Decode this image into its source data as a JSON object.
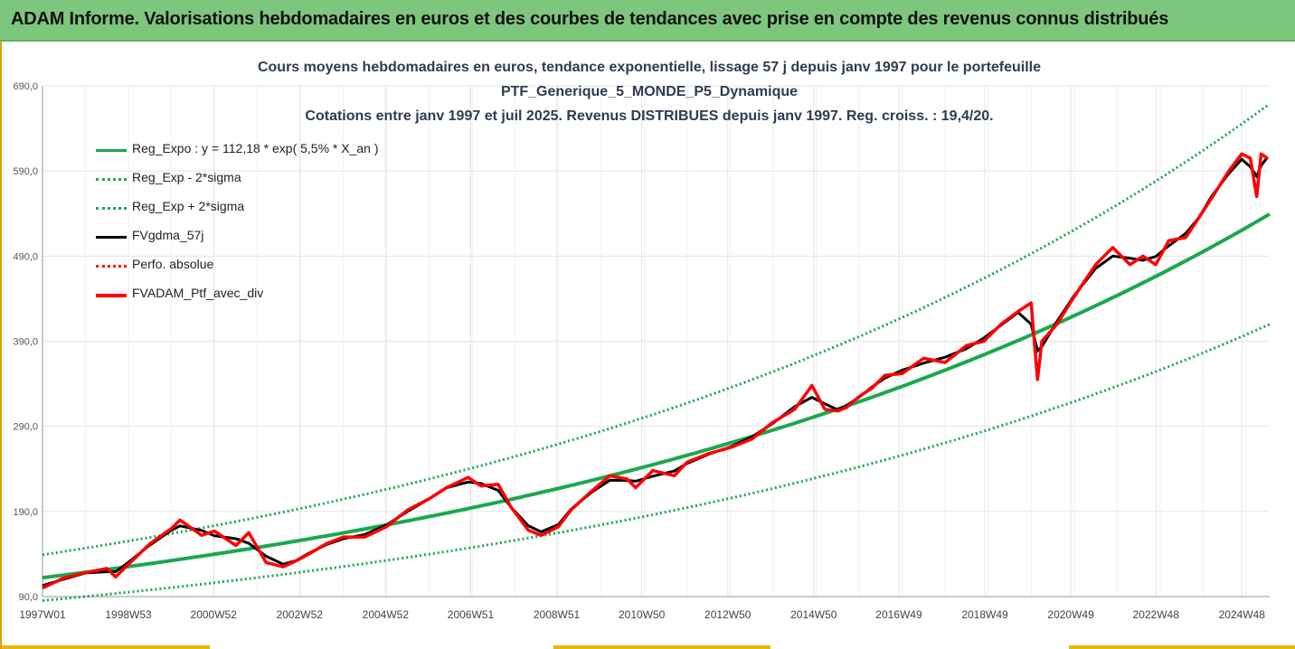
{
  "banner": {
    "title": "ADAM Informe. Valorisations hebdomadaires en euros et des courbes de tendances avec prise en compte des revenus connus distribués"
  },
  "chart_data": {
    "type": "line",
    "title_lines": [
      "Cours moyens hebdomadaires  en euros, tendance exponentielle, lissage 57 j depuis janv 1997 pour le portefeuille",
      "PTF_Generique_5_MONDE_P5_Dynamique",
      "Cotations  entre janv 1997 et juil 2025. Revenus DISTRIBUES depuis janv 1997. Reg. croiss. : 19,4/20."
    ],
    "xlabel": "",
    "ylabel": "",
    "ylim": [
      90,
      690
    ],
    "xlim": [
      1997.0,
      2025.55
    ],
    "y_ticks": [
      "90,0",
      "190,0",
      "290,0",
      "390,0",
      "490,0",
      "590,0",
      "690,0"
    ],
    "y_tick_values": [
      90,
      190,
      290,
      390,
      490,
      590,
      690
    ],
    "x_ticks": [
      "1997W01",
      "1998W53",
      "2000W52",
      "2002W52",
      "2004W52",
      "2006W51",
      "2008W51",
      "2010W50",
      "2012W50",
      "2014W50",
      "2016W49",
      "2018W49",
      "2020W49",
      "2022W48",
      "2024W48"
    ],
    "grid": true,
    "legend_position": "top-left",
    "regression": {
      "a": 112.18,
      "rate": 0.055,
      "sigma_band": 0.24
    },
    "series": [
      {
        "name": "Reg_Expo : y = 112,18 * exp( 5,5% *  X_an )",
        "color": "#1aa84f",
        "style": "solid"
      },
      {
        "name": "Reg_Exp - 2*sigma",
        "color": "#1aa84f",
        "style": "dotted"
      },
      {
        "name": "Reg_Exp + 2*sigma",
        "color": "#1aa84f",
        "style": "dotted"
      },
      {
        "name": "FVgdma_57j",
        "color": "#000000",
        "style": "solid"
      },
      {
        "name": "Perfo. absolue",
        "color": "#ff0000",
        "style": "dotted"
      },
      {
        "name": "FVADAM_Ptf_avec_div",
        "color": "#ff0000",
        "style": "solid",
        "x": [
          1997.0,
          1997.5,
          1998.0,
          1998.5,
          1998.7,
          1999.0,
          1999.5,
          2000.0,
          2000.2,
          2000.7,
          2001.0,
          2001.5,
          2001.8,
          2002.2,
          2002.6,
          2002.9,
          2003.2,
          2003.6,
          2004.0,
          2004.5,
          2005.0,
          2005.5,
          2006.0,
          2006.4,
          2006.9,
          2007.2,
          2007.6,
          2007.9,
          2008.3,
          2008.6,
          2009.0,
          2009.3,
          2009.8,
          2010.2,
          2010.6,
          2010.8,
          2011.2,
          2011.7,
          2012.0,
          2012.5,
          2013.0,
          2013.5,
          2014.0,
          2014.5,
          2014.9,
          2015.2,
          2015.5,
          2015.7,
          2016.0,
          2016.3,
          2016.6,
          2017.0,
          2017.5,
          2018.0,
          2018.5,
          2018.9,
          2019.3,
          2019.7,
          2020.0,
          2020.15,
          2020.25,
          2020.6,
          2021.0,
          2021.5,
          2021.9,
          2022.3,
          2022.6,
          2022.9,
          2023.2,
          2023.6,
          2023.9,
          2024.2,
          2024.6,
          2024.9,
          2025.1,
          2025.25,
          2025.35,
          2025.5
        ],
        "values": [
          100,
          112,
          118,
          123,
          113,
          128,
          152,
          170,
          180,
          162,
          167,
          150,
          165,
          130,
          125,
          132,
          140,
          152,
          160,
          160,
          172,
          192,
          205,
          218,
          230,
          220,
          222,
          195,
          168,
          162,
          172,
          192,
          215,
          232,
          228,
          218,
          238,
          232,
          248,
          258,
          265,
          275,
          295,
          310,
          338,
          310,
          308,
          312,
          325,
          335,
          350,
          352,
          370,
          365,
          385,
          390,
          410,
          425,
          435,
          345,
          390,
          410,
          442,
          480,
          500,
          480,
          490,
          480,
          508,
          512,
          535,
          558,
          590,
          610,
          605,
          560,
          610,
          605
        ]
      }
    ]
  }
}
